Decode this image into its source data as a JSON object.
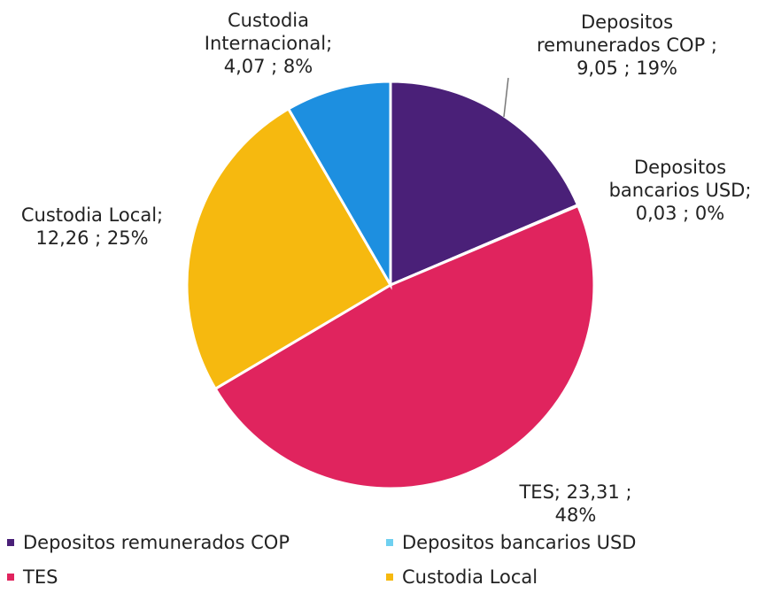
{
  "chart_data": {
    "type": "pie",
    "title": "",
    "unit_separator": ";",
    "slices": [
      {
        "name": "Depositos remunerados COP",
        "value": 9.05,
        "value_label": "9,05",
        "percent_label": "19%",
        "color": "#4a2078",
        "label_lines": [
          "Depositos",
          "remunerados COP ;",
          "9,05 ; 19%"
        ]
      },
      {
        "name": "Depositos bancarios USD",
        "value": 0.03,
        "value_label": "0,03",
        "percent_label": "0%",
        "color": "#6fd0f0",
        "label_lines": [
          "Depositos",
          "bancarios USD;",
          "0,03 ; 0%"
        ]
      },
      {
        "name": "TES",
        "value": 23.31,
        "value_label": "23,31",
        "percent_label": "48%",
        "color": "#e0245e",
        "label_lines": [
          "TES;  23,31 ;",
          "48%"
        ]
      },
      {
        "name": "Custodia Local",
        "value": 12.26,
        "value_label": "12,26",
        "percent_label": "25%",
        "color": "#f6b90f",
        "label_lines": [
          "Custodia Local;",
          "12,26 ; 25%"
        ]
      },
      {
        "name": "Custodia Internacional",
        "value": 4.07,
        "value_label": "4,07",
        "percent_label": "8%",
        "color": "#1d8fe0",
        "label_lines": [
          "Custodia",
          "Internacional;",
          "4,07 ; 8%"
        ]
      }
    ],
    "legend": {
      "placement": "bottom",
      "items": [
        {
          "label": "Depositos remunerados COP",
          "color": "#4a2078"
        },
        {
          "label": "Depositos bancarios USD",
          "color": "#6fd0f0"
        },
        {
          "label": "TES",
          "color": "#e0245e"
        },
        {
          "label": "Custodia Local",
          "color": "#f6b90f"
        }
      ]
    }
  }
}
